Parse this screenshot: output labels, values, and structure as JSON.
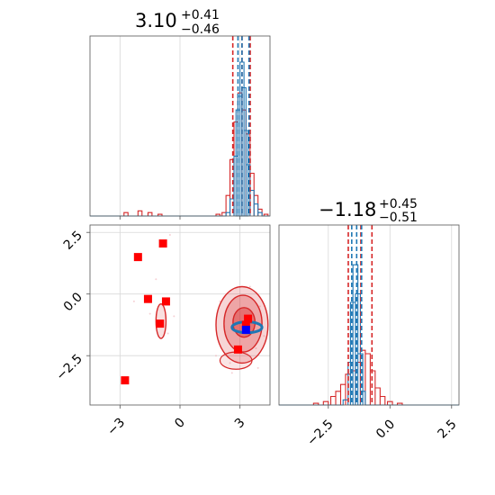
{
  "chart_data": [
    {
      "type": "histogram",
      "panel": "top-left",
      "title": {
        "value": "3.10",
        "plus": "+0.41",
        "minus": "−0.46"
      },
      "xlim": [
        -4.5,
        4.5
      ],
      "grid": true,
      "quantile_lines": {
        "red": [
          2.64,
          3.1,
          3.51
        ],
        "blue": [
          2.9,
          3.1,
          3.45
        ]
      },
      "series": [
        {
          "color": "#d62728",
          "bins": [
            [
              -3.3,
              0.0
            ],
            [
              -2.7,
              0.02
            ],
            [
              -2.0,
              0.03
            ],
            [
              -1.5,
              0.02
            ],
            [
              -1.0,
              0.01
            ],
            [
              1.9,
              0.01
            ],
            [
              2.2,
              0.02
            ],
            [
              2.4,
              0.12
            ],
            [
              2.6,
              0.33
            ],
            [
              2.8,
              0.55
            ],
            [
              3.0,
              0.72
            ],
            [
              3.2,
              0.62
            ],
            [
              3.4,
              0.48
            ],
            [
              3.6,
              0.25
            ],
            [
              3.8,
              0.12
            ],
            [
              4.0,
              0.04
            ],
            [
              4.3,
              0.01
            ]
          ]
        },
        {
          "color": "#1f77b4",
          "bins": [
            [
              2.4,
              0.02
            ],
            [
              2.6,
              0.1
            ],
            [
              2.8,
              0.35
            ],
            [
              2.9,
              0.62
            ],
            [
              3.0,
              0.7
            ],
            [
              3.1,
              0.9
            ],
            [
              3.2,
              0.75
            ],
            [
              3.3,
              0.5
            ],
            [
              3.4,
              0.3
            ],
            [
              3.6,
              0.15
            ],
            [
              3.8,
              0.07
            ],
            [
              4.0,
              0.02
            ]
          ]
        }
      ]
    },
    {
      "type": "histogram",
      "panel": "bottom-right",
      "title": {
        "value": "−1.18",
        "plus": "+0.45",
        "minus": "−0.51"
      },
      "xlim": [
        -4.5,
        2.8
      ],
      "xticks": [
        "−2.5",
        "0.0",
        "2.5"
      ],
      "xtick_values": [
        -2.5,
        0.0,
        2.5
      ],
      "grid": true,
      "quantile_lines": {
        "red": [
          -1.69,
          -1.18,
          -0.73
        ],
        "blue": [
          -1.55,
          -1.35,
          -1.15
        ]
      },
      "series": [
        {
          "color": "#d62728",
          "bins": [
            [
              -3.0,
              0.01
            ],
            [
              -2.6,
              0.02
            ],
            [
              -2.3,
              0.05
            ],
            [
              -2.1,
              0.08
            ],
            [
              -1.9,
              0.12
            ],
            [
              -1.7,
              0.18
            ],
            [
              -1.5,
              0.2
            ],
            [
              -1.3,
              0.25
            ],
            [
              -1.1,
              0.32
            ],
            [
              -0.9,
              0.3
            ],
            [
              -0.7,
              0.2
            ],
            [
              -0.5,
              0.1
            ],
            [
              -0.3,
              0.05
            ],
            [
              0.0,
              0.02
            ],
            [
              0.4,
              0.01
            ]
          ]
        },
        {
          "color": "#1f77b4",
          "bins": [
            [
              -1.8,
              0.03
            ],
            [
              -1.6,
              0.25
            ],
            [
              -1.5,
              0.6
            ],
            [
              -1.4,
              0.82
            ],
            [
              -1.3,
              0.65
            ],
            [
              -1.2,
              0.3
            ],
            [
              -1.1,
              0.08
            ]
          ]
        }
      ]
    },
    {
      "type": "scatter",
      "panel": "bottom-left",
      "xlim": [
        -4.5,
        4.5
      ],
      "ylim": [
        -4.5,
        2.8
      ],
      "xticks": [
        "−3",
        "0",
        "3"
      ],
      "xtick_values": [
        -3,
        0,
        3
      ],
      "yticks": [
        "2.5",
        "0.0",
        "−2.5"
      ],
      "ytick_values": [
        2.5,
        0.0,
        -2.5
      ],
      "grid": true,
      "red_squares": [
        [
          -2.75,
          -3.5
        ],
        [
          -2.1,
          1.5
        ],
        [
          -0.85,
          2.05
        ],
        [
          -1.6,
          -0.2
        ],
        [
          -0.7,
          -0.3
        ],
        [
          -1.0,
          -1.2
        ],
        [
          2.9,
          -2.25
        ],
        [
          3.4,
          -1.0
        ],
        [
          3.3,
          -1.25
        ]
      ],
      "blue_square": [
        3.3,
        -1.45
      ],
      "red_contours": [
        {
          "cx": 3.1,
          "cy": -1.25,
          "rx": 1.3,
          "ry": 1.55,
          "alpha": 0.35
        },
        {
          "cx": 3.15,
          "cy": -1.2,
          "rx": 0.95,
          "ry": 1.15,
          "alpha": 0.5
        },
        {
          "cx": 3.2,
          "cy": -1.15,
          "rx": 0.55,
          "ry": 0.6,
          "alpha": 0.75
        }
      ],
      "blue_contour": {
        "cx": 3.35,
        "cy": -1.35,
        "rx": 0.75,
        "ry": 0.22
      },
      "small_contour": {
        "cx": -0.95,
        "cy": -1.1,
        "rx": 0.25,
        "ry": 0.7
      }
    }
  ]
}
